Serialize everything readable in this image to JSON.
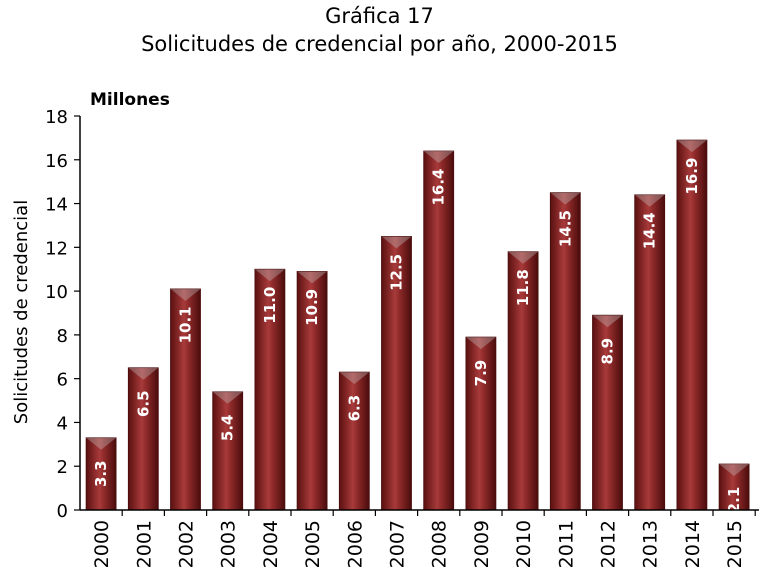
{
  "chart_data": {
    "type": "bar",
    "title": "Gráfica 17",
    "subtitle": "Solicitudes de credencial por año, 2000-2015",
    "unit_label": "Millones",
    "ylabel": "Solicitudes de credencial",
    "xlabel": "",
    "ylim": [
      0,
      18
    ],
    "yticks": [
      0,
      2,
      4,
      6,
      8,
      10,
      12,
      14,
      16,
      18
    ],
    "categories": [
      "2000",
      "2001",
      "2002",
      "2003",
      "2004",
      "2005",
      "2006",
      "2007",
      "2008",
      "2009",
      "2010",
      "2011",
      "2012",
      "2013",
      "2014",
      "2015"
    ],
    "values": [
      3.3,
      6.5,
      10.1,
      5.4,
      11.0,
      10.9,
      6.3,
      12.5,
      16.4,
      7.9,
      11.8,
      14.5,
      8.9,
      14.4,
      16.9,
      2.1
    ],
    "data_labels": [
      "3.3",
      "6.5",
      "10.1",
      "5.4",
      "11.0",
      "10.9",
      "6.3",
      "12.5",
      "16.4",
      "7.9",
      "11.8",
      "14.5",
      "8.9",
      "14.4",
      "16.9",
      "2.1"
    ],
    "bar_color": "#8B2323",
    "grid": false,
    "legend": "none"
  }
}
